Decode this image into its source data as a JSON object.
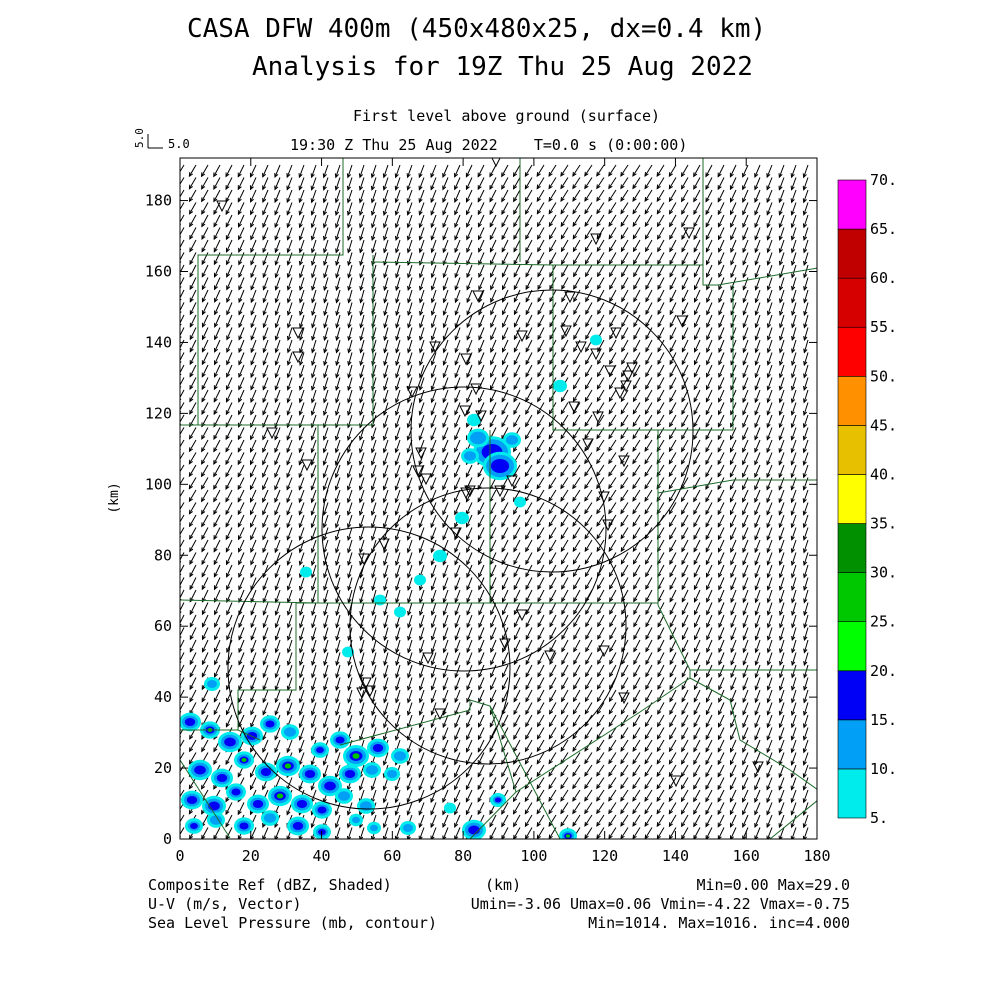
{
  "title_line1": "CASA DFW 400m (450x480x25, dx=0.4 km)",
  "title_line2": "Analysis for 19Z Thu 25 Aug 2022",
  "level_label": "First level above ground (surface)",
  "time_label": "19:30 Z Thu 25 Aug 2022    T=0.0 s (0:00:00)",
  "vector_key": {
    "rotated": "5.0",
    "label": "5.0"
  },
  "axes": {
    "x_title": "(km)",
    "y_title": "(km)",
    "x_ticks": [
      "0",
      "20",
      "40",
      "60",
      "80",
      "100",
      "120",
      "140",
      "160",
      "180"
    ],
    "y_ticks": [
      "0",
      "20",
      "40",
      "60",
      "80",
      "100",
      "120",
      "140",
      "160",
      "180"
    ],
    "x_range": [
      0,
      180
    ],
    "y_range": [
      0,
      192
    ]
  },
  "colorbar": {
    "labels": [
      "5.",
      "10.",
      "15.",
      "20.",
      "25.",
      "30.",
      "35.",
      "40.",
      "45.",
      "50.",
      "55.",
      "60.",
      "65.",
      "70."
    ],
    "colors": [
      "#00ecec",
      "#01a0f6",
      "#0000f6",
      "#00ff00",
      "#00c800",
      "#009000",
      "#ffff00",
      "#e7c000",
      "#ff9000",
      "#ff0000",
      "#d60000",
      "#c00000",
      "#ff00ff"
    ]
  },
  "footer": {
    "left1": "Composite Ref (dBZ, Shaded)",
    "mid1": "(km)",
    "right1": "Min=0.00 Max=29.0",
    "left2": "U-V (m/s, Vector)",
    "right2": "Umin=-3.06 Umax=0.06 Vmin=-4.22 Vmax=-0.75",
    "left3": "Sea Level Pressure (mb, contour)",
    "right3": "Min=1014. Max=1016. inc=4.000"
  },
  "map_colors": {
    "county_line": "#1d6b2a",
    "range_ring": "#000000",
    "vector": "#000000"
  }
}
